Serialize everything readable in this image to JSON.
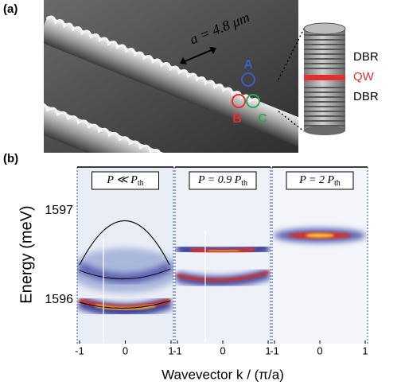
{
  "panel_a": {
    "label": "(a)",
    "lattice": "a = 4.8 μm",
    "sites": [
      "A",
      "B",
      "C"
    ],
    "layers": [
      "DBR",
      "QW",
      "DBR"
    ]
  },
  "panel_b": {
    "label": "(b)",
    "y_label": "Energy (meV)",
    "y_ticks": [
      "1597",
      "1596"
    ],
    "x_label": "Wavevector k / (π/a)",
    "panels": [
      {
        "title": "P ≪ P",
        "sub": "th",
        "x_ticks": [
          "-1",
          "0",
          "1"
        ]
      },
      {
        "title": "P = 0.9 P",
        "sub": "th",
        "x_ticks": [
          "-1",
          "0",
          "1"
        ]
      },
      {
        "title": "P = 2 P",
        "sub": "th",
        "x_ticks": [
          "-1",
          "0",
          "1"
        ]
      }
    ]
  }
}
